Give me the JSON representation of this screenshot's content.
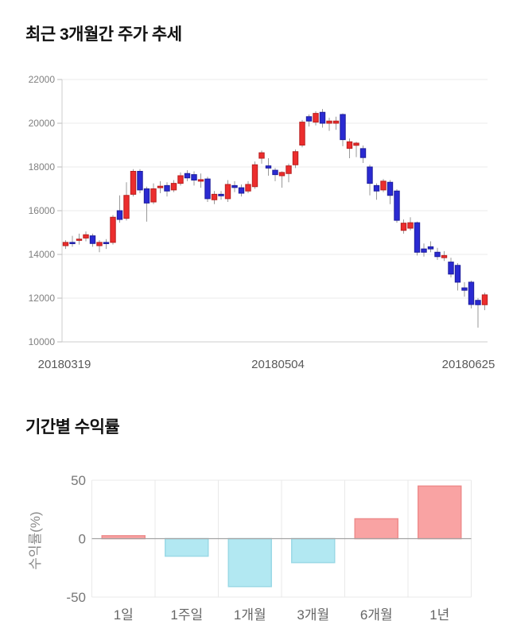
{
  "chart_data": [
    {
      "type": "candlestick",
      "title": "최근 3개월간 주가 추세",
      "ylim": [
        10000,
        22000
      ],
      "y_ticks": [
        22000,
        20000,
        18000,
        16000,
        14000,
        12000,
        10000
      ],
      "x_tick_labels": [
        "20180319",
        "20180504",
        "20180625"
      ],
      "grid": "horizontal",
      "legend": "none",
      "colors": {
        "up_fill": "#ec2d2d",
        "up_stroke": "#b81e1e",
        "down_fill": "#2a2ad2",
        "down_stroke": "#1d1d9c",
        "wick": "#999999",
        "grid": "#ebebeb",
        "axis": "#cccccc",
        "tick_dash": "#bbbbbb",
        "y_tick_text": "#808080",
        "date_text": "#595959"
      },
      "candles_format": [
        "open",
        "high",
        "low",
        "close"
      ],
      "candles": [
        [
          14400,
          14650,
          14250,
          14550
        ],
        [
          14550,
          14850,
          14350,
          14500
        ],
        [
          14650,
          14950,
          14450,
          14700
        ],
        [
          14750,
          15050,
          14600,
          14900
        ],
        [
          14850,
          14950,
          14350,
          14500
        ],
        [
          14400,
          14650,
          14100,
          14550
        ],
        [
          14550,
          14700,
          14250,
          14500
        ],
        [
          14550,
          15800,
          14450,
          15700
        ],
        [
          16000,
          16700,
          15450,
          15600
        ],
        [
          15650,
          17300,
          15550,
          16700
        ],
        [
          16750,
          17900,
          16650,
          17800
        ],
        [
          17800,
          17900,
          16800,
          16950
        ],
        [
          17000,
          17100,
          15500,
          16350
        ],
        [
          16400,
          17250,
          16300,
          17000
        ],
        [
          17050,
          17350,
          16800,
          17120
        ],
        [
          17150,
          17300,
          16650,
          16900
        ],
        [
          16950,
          17400,
          16850,
          17250
        ],
        [
          17250,
          17750,
          17150,
          17600
        ],
        [
          17700,
          17850,
          17350,
          17500
        ],
        [
          17650,
          17800,
          17150,
          17400
        ],
        [
          17350,
          17700,
          17050,
          17420
        ],
        [
          17450,
          17550,
          16400,
          16550
        ],
        [
          16500,
          16900,
          16300,
          16750
        ],
        [
          16750,
          16900,
          16500,
          16680
        ],
        [
          16550,
          17400,
          16400,
          17200
        ],
        [
          17150,
          17350,
          16850,
          17060
        ],
        [
          17050,
          17200,
          16650,
          16800
        ],
        [
          16900,
          17350,
          16800,
          17200
        ],
        [
          17100,
          18250,
          17000,
          18100
        ],
        [
          18400,
          18750,
          18150,
          18650
        ],
        [
          18050,
          18400,
          17600,
          17950
        ],
        [
          17850,
          17950,
          17350,
          17650
        ],
        [
          17600,
          17800,
          17050,
          17750
        ],
        [
          17700,
          18150,
          17300,
          18050
        ],
        [
          18100,
          18800,
          17950,
          18700
        ],
        [
          19000,
          20150,
          18900,
          20050
        ],
        [
          20300,
          20400,
          19850,
          20100
        ],
        [
          20050,
          20550,
          19900,
          20450
        ],
        [
          20500,
          20650,
          19800,
          20000
        ],
        [
          20000,
          20250,
          19650,
          20100
        ],
        [
          20000,
          20300,
          19700,
          20100
        ],
        [
          20400,
          20450,
          18950,
          19250
        ],
        [
          18850,
          19300,
          18400,
          19150
        ],
        [
          18990,
          19150,
          18450,
          19090
        ],
        [
          18840,
          18980,
          18180,
          18430
        ],
        [
          18000,
          18100,
          16700,
          17250
        ],
        [
          17150,
          17250,
          16500,
          16900
        ],
        [
          16950,
          17450,
          16850,
          17350
        ],
        [
          17300,
          17400,
          16300,
          16700
        ],
        [
          16900,
          16980,
          15450,
          15560
        ],
        [
          15100,
          15600,
          14950,
          15430
        ],
        [
          15200,
          15700,
          15100,
          15450
        ],
        [
          15450,
          15500,
          13950,
          14100
        ],
        [
          14250,
          14500,
          13900,
          14100
        ],
        [
          14350,
          14600,
          14100,
          14250
        ],
        [
          14100,
          14300,
          13750,
          13900
        ],
        [
          13850,
          14150,
          13700,
          13950
        ],
        [
          13650,
          13850,
          12950,
          13100
        ],
        [
          13500,
          13600,
          12350,
          12730
        ],
        [
          12470,
          12730,
          12070,
          12360
        ],
        [
          12730,
          12800,
          11530,
          11710
        ],
        [
          11900,
          12000,
          10650,
          11700
        ],
        [
          11700,
          12250,
          11450,
          12150
        ]
      ]
    },
    {
      "type": "bar",
      "title": "기간별 수익률",
      "ylabel": "수익률(%)",
      "xlabel": "",
      "categories": [
        "1일",
        "1주일",
        "1개월",
        "3개월",
        "6개월",
        "1년"
      ],
      "values": [
        2.5,
        -15,
        -41,
        -20.5,
        17,
        45
      ],
      "ylim": [
        -50,
        50
      ],
      "y_ticks": [
        50,
        0,
        -50
      ],
      "grid": "band-dividers",
      "legend": "none",
      "colors": {
        "positive_fill": "#f9a3a3",
        "positive_stroke": "#ee8c8c",
        "negative_fill": "#b2e8f2",
        "negative_stroke": "#9bd9e6",
        "zero_line": "#a3a3a3",
        "grid": "#e9e9e9",
        "tick_text": "#777777",
        "ylabel_text": "#8a8a8a",
        "category_text": "#666666"
      }
    }
  ]
}
